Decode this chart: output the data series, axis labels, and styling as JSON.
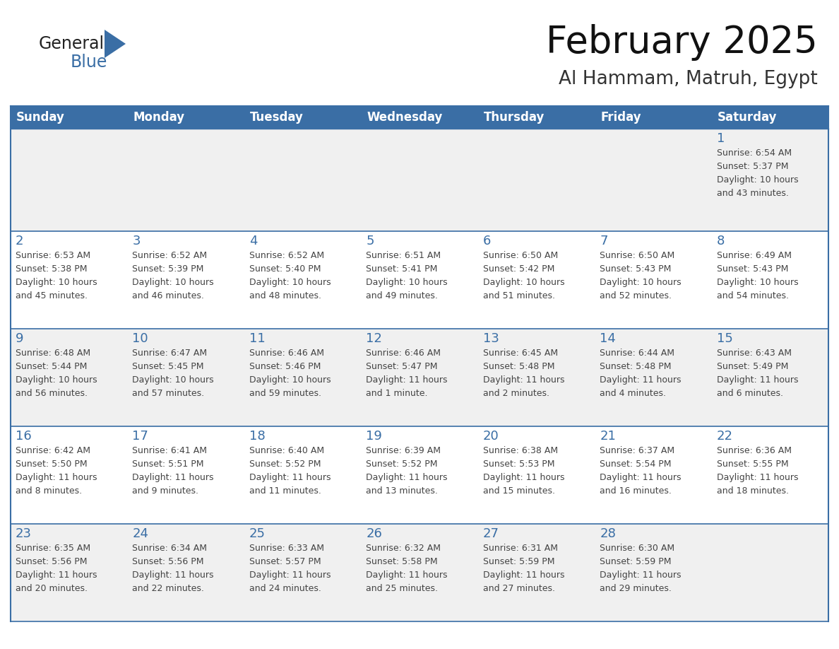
{
  "title": "February 2025",
  "subtitle": "Al Hammam, Matruh, Egypt",
  "header_color": "#3A6EA5",
  "header_text_color": "#FFFFFF",
  "cell_bg_white": "#FFFFFF",
  "cell_bg_gray": "#F0F0F0",
  "day_number_color": "#3A6EA5",
  "text_color": "#444444",
  "line_color": "#3A6EA5",
  "days_of_week": [
    "Sunday",
    "Monday",
    "Tuesday",
    "Wednesday",
    "Thursday",
    "Friday",
    "Saturday"
  ],
  "logo_text1": "General",
  "logo_text2": "Blue",
  "logo_triangle_color": "#3A6EA5",
  "logo_text1_color": "#222222",
  "logo_text2_color": "#3A6EA5",
  "calendar_data": [
    [
      {
        "day": "",
        "info": ""
      },
      {
        "day": "",
        "info": ""
      },
      {
        "day": "",
        "info": ""
      },
      {
        "day": "",
        "info": ""
      },
      {
        "day": "",
        "info": ""
      },
      {
        "day": "",
        "info": ""
      },
      {
        "day": "1",
        "info": "Sunrise: 6:54 AM\nSunset: 5:37 PM\nDaylight: 10 hours\nand 43 minutes."
      }
    ],
    [
      {
        "day": "2",
        "info": "Sunrise: 6:53 AM\nSunset: 5:38 PM\nDaylight: 10 hours\nand 45 minutes."
      },
      {
        "day": "3",
        "info": "Sunrise: 6:52 AM\nSunset: 5:39 PM\nDaylight: 10 hours\nand 46 minutes."
      },
      {
        "day": "4",
        "info": "Sunrise: 6:52 AM\nSunset: 5:40 PM\nDaylight: 10 hours\nand 48 minutes."
      },
      {
        "day": "5",
        "info": "Sunrise: 6:51 AM\nSunset: 5:41 PM\nDaylight: 10 hours\nand 49 minutes."
      },
      {
        "day": "6",
        "info": "Sunrise: 6:50 AM\nSunset: 5:42 PM\nDaylight: 10 hours\nand 51 minutes."
      },
      {
        "day": "7",
        "info": "Sunrise: 6:50 AM\nSunset: 5:43 PM\nDaylight: 10 hours\nand 52 minutes."
      },
      {
        "day": "8",
        "info": "Sunrise: 6:49 AM\nSunset: 5:43 PM\nDaylight: 10 hours\nand 54 minutes."
      }
    ],
    [
      {
        "day": "9",
        "info": "Sunrise: 6:48 AM\nSunset: 5:44 PM\nDaylight: 10 hours\nand 56 minutes."
      },
      {
        "day": "10",
        "info": "Sunrise: 6:47 AM\nSunset: 5:45 PM\nDaylight: 10 hours\nand 57 minutes."
      },
      {
        "day": "11",
        "info": "Sunrise: 6:46 AM\nSunset: 5:46 PM\nDaylight: 10 hours\nand 59 minutes."
      },
      {
        "day": "12",
        "info": "Sunrise: 6:46 AM\nSunset: 5:47 PM\nDaylight: 11 hours\nand 1 minute."
      },
      {
        "day": "13",
        "info": "Sunrise: 6:45 AM\nSunset: 5:48 PM\nDaylight: 11 hours\nand 2 minutes."
      },
      {
        "day": "14",
        "info": "Sunrise: 6:44 AM\nSunset: 5:48 PM\nDaylight: 11 hours\nand 4 minutes."
      },
      {
        "day": "15",
        "info": "Sunrise: 6:43 AM\nSunset: 5:49 PM\nDaylight: 11 hours\nand 6 minutes."
      }
    ],
    [
      {
        "day": "16",
        "info": "Sunrise: 6:42 AM\nSunset: 5:50 PM\nDaylight: 11 hours\nand 8 minutes."
      },
      {
        "day": "17",
        "info": "Sunrise: 6:41 AM\nSunset: 5:51 PM\nDaylight: 11 hours\nand 9 minutes."
      },
      {
        "day": "18",
        "info": "Sunrise: 6:40 AM\nSunset: 5:52 PM\nDaylight: 11 hours\nand 11 minutes."
      },
      {
        "day": "19",
        "info": "Sunrise: 6:39 AM\nSunset: 5:52 PM\nDaylight: 11 hours\nand 13 minutes."
      },
      {
        "day": "20",
        "info": "Sunrise: 6:38 AM\nSunset: 5:53 PM\nDaylight: 11 hours\nand 15 minutes."
      },
      {
        "day": "21",
        "info": "Sunrise: 6:37 AM\nSunset: 5:54 PM\nDaylight: 11 hours\nand 16 minutes."
      },
      {
        "day": "22",
        "info": "Sunrise: 6:36 AM\nSunset: 5:55 PM\nDaylight: 11 hours\nand 18 minutes."
      }
    ],
    [
      {
        "day": "23",
        "info": "Sunrise: 6:35 AM\nSunset: 5:56 PM\nDaylight: 11 hours\nand 20 minutes."
      },
      {
        "day": "24",
        "info": "Sunrise: 6:34 AM\nSunset: 5:56 PM\nDaylight: 11 hours\nand 22 minutes."
      },
      {
        "day": "25",
        "info": "Sunrise: 6:33 AM\nSunset: 5:57 PM\nDaylight: 11 hours\nand 24 minutes."
      },
      {
        "day": "26",
        "info": "Sunrise: 6:32 AM\nSunset: 5:58 PM\nDaylight: 11 hours\nand 25 minutes."
      },
      {
        "day": "27",
        "info": "Sunrise: 6:31 AM\nSunset: 5:59 PM\nDaylight: 11 hours\nand 27 minutes."
      },
      {
        "day": "28",
        "info": "Sunrise: 6:30 AM\nSunset: 5:59 PM\nDaylight: 11 hours\nand 29 minutes."
      },
      {
        "day": "",
        "info": ""
      }
    ]
  ],
  "row_bg_colors": [
    "#F0F0F0",
    "#FFFFFF",
    "#F0F0F0",
    "#FFFFFF",
    "#F0F0F0"
  ]
}
